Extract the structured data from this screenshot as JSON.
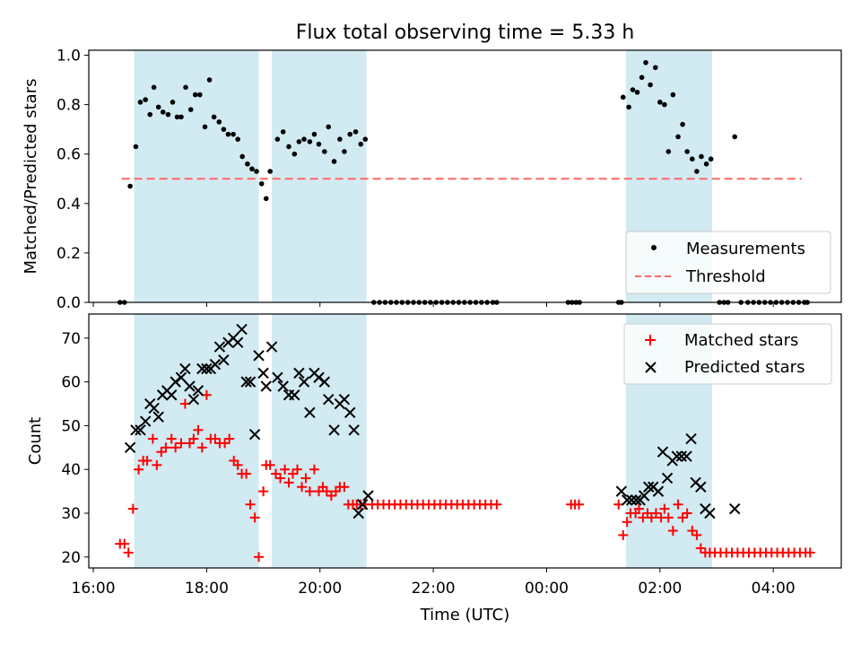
{
  "colors": {
    "band": "#add8e6",
    "measurement": "#000000",
    "threshold": "#ff6666",
    "matched": "#ff0000",
    "predicted": "#000000"
  },
  "chart_data": [
    {
      "type": "scatter",
      "title": "Flux total observing time = 5.33 h",
      "xlabel": "",
      "ylabel": "Matched/Predicted stars",
      "xlim": [
        15.92,
        29.2
      ],
      "ylim": [
        0,
        1.02
      ],
      "yticks": [
        0.0,
        0.2,
        0.4,
        0.6,
        0.8,
        1.0
      ],
      "ytick_labels": [
        "0.0",
        "0.2",
        "0.4",
        "0.6",
        "0.8",
        "1.0"
      ],
      "legend": {
        "placement": "lower-right",
        "entries": [
          "Measurements",
          "Threshold"
        ]
      },
      "shaded_intervals": [
        [
          16.72,
          18.92
        ],
        [
          19.15,
          20.82
        ],
        [
          25.4,
          26.92
        ]
      ],
      "threshold": {
        "name": "Threshold",
        "value": 0.5,
        "x_range": [
          16.5,
          28.5
        ]
      },
      "series": [
        {
          "name": "Measurements",
          "x": [
            16.47,
            16.55,
            16.65,
            16.75,
            16.83,
            16.92,
            17.0,
            17.07,
            17.15,
            17.23,
            17.32,
            17.4,
            17.48,
            17.55,
            17.63,
            17.72,
            17.8,
            17.88,
            17.97,
            18.05,
            18.13,
            18.22,
            18.3,
            18.38,
            18.47,
            18.55,
            18.63,
            18.72,
            18.8,
            18.88,
            18.97,
            19.05,
            19.12,
            19.25,
            19.35,
            19.45,
            19.55,
            19.63,
            19.72,
            19.82,
            19.9,
            19.98,
            20.08,
            20.15,
            20.25,
            20.35,
            20.43,
            20.53,
            20.63,
            20.72,
            20.8,
            20.95,
            21.05,
            21.15,
            21.25,
            21.35,
            21.45,
            21.55,
            21.65,
            21.75,
            21.85,
            21.95,
            22.05,
            22.15,
            22.25,
            22.35,
            22.45,
            22.55,
            22.65,
            22.75,
            22.85,
            22.95,
            23.05,
            23.12,
            24.38,
            24.45,
            24.52,
            24.58,
            25.27,
            25.32,
            25.35,
            25.45,
            25.52,
            25.6,
            25.68,
            25.75,
            25.83,
            25.92,
            26.0,
            26.08,
            26.15,
            26.23,
            26.32,
            26.4,
            26.48,
            26.57,
            26.65,
            26.73,
            26.82,
            26.9,
            27.05,
            27.13,
            27.2,
            27.32,
            27.43,
            27.55,
            27.65,
            27.75,
            27.85,
            27.95,
            28.05,
            28.15,
            28.25,
            28.35,
            28.45,
            28.55,
            28.6
          ],
          "y": [
            0.0,
            0.0,
            0.47,
            0.63,
            0.81,
            0.82,
            0.76,
            0.87,
            0.79,
            0.77,
            0.76,
            0.81,
            0.75,
            0.75,
            0.87,
            0.78,
            0.84,
            0.84,
            0.71,
            0.9,
            0.75,
            0.73,
            0.7,
            0.68,
            0.68,
            0.66,
            0.59,
            0.56,
            0.54,
            0.53,
            0.48,
            0.42,
            0.53,
            0.66,
            0.69,
            0.63,
            0.6,
            0.65,
            0.66,
            0.65,
            0.68,
            0.64,
            0.61,
            0.71,
            0.57,
            0.66,
            0.61,
            0.68,
            0.69,
            0.64,
            0.66,
            0.0,
            0.0,
            0.0,
            0.0,
            0.0,
            0.0,
            0.0,
            0.0,
            0.0,
            0.0,
            0.0,
            0.0,
            0.0,
            0.0,
            0.0,
            0.0,
            0.0,
            0.0,
            0.0,
            0.0,
            0.0,
            0.0,
            0.0,
            0.0,
            0.0,
            0.0,
            0.0,
            0.0,
            0.0,
            0.83,
            0.79,
            0.86,
            0.85,
            0.91,
            0.97,
            0.88,
            0.95,
            0.81,
            0.8,
            0.61,
            0.84,
            0.67,
            0.72,
            0.61,
            0.58,
            0.53,
            0.59,
            0.56,
            0.58,
            0.0,
            0.0,
            0.0,
            0.67,
            0.0,
            0.0,
            0.0,
            0.0,
            0.0,
            0.0,
            0.0,
            0.0,
            0.0,
            0.0,
            0.0,
            0.0,
            0.0
          ]
        }
      ]
    },
    {
      "type": "scatter",
      "title": "",
      "xlabel": "Time (UTC)",
      "ylabel": "Count",
      "xlim": [
        15.92,
        29.2
      ],
      "ylim": [
        17.5,
        75.5
      ],
      "xticks": [
        16,
        18,
        20,
        22,
        24,
        26,
        28
      ],
      "xtick_labels": [
        "16:00",
        "18:00",
        "20:00",
        "22:00",
        "00:00",
        "02:00",
        "04:00"
      ],
      "yticks": [
        20,
        30,
        40,
        50,
        60,
        70
      ],
      "ytick_labels": [
        "20",
        "30",
        "40",
        "50",
        "60",
        "70"
      ],
      "legend": {
        "placement": "upper-right",
        "entries": [
          "Matched stars",
          "Predicted stars"
        ]
      },
      "shaded_intervals": [
        [
          16.72,
          18.92
        ],
        [
          19.15,
          20.82
        ],
        [
          25.4,
          26.92
        ]
      ],
      "series": [
        {
          "name": "Matched stars",
          "marker": "+",
          "x": [
            16.47,
            16.55,
            16.62,
            16.7,
            16.8,
            16.88,
            16.95,
            17.05,
            17.12,
            17.2,
            17.28,
            17.38,
            17.45,
            17.55,
            17.62,
            17.7,
            17.77,
            17.85,
            17.92,
            18.0,
            18.07,
            18.15,
            18.23,
            18.32,
            18.4,
            18.48,
            18.55,
            18.62,
            18.7,
            18.77,
            18.85,
            18.92,
            19.0,
            19.05,
            19.12,
            19.22,
            19.3,
            19.38,
            19.45,
            19.52,
            19.6,
            19.68,
            19.75,
            19.82,
            19.9,
            19.98,
            20.05,
            20.12,
            20.2,
            20.28,
            20.35,
            20.43,
            20.5,
            20.58,
            20.65,
            20.72,
            20.8,
            20.92,
            21.02,
            21.12,
            21.22,
            21.32,
            21.42,
            21.52,
            21.62,
            21.72,
            21.82,
            21.92,
            22.02,
            22.12,
            22.22,
            22.32,
            22.42,
            22.52,
            22.62,
            22.72,
            22.82,
            22.92,
            23.02,
            23.12,
            24.43,
            24.5,
            24.57,
            25.27,
            25.35,
            25.42,
            25.48,
            25.57,
            25.63,
            25.7,
            25.78,
            25.85,
            25.93,
            26.02,
            26.08,
            26.15,
            26.23,
            26.32,
            26.4,
            26.48,
            26.57,
            26.65,
            26.72,
            26.8,
            26.88,
            26.97,
            27.07,
            27.17,
            27.27,
            27.37,
            27.47,
            27.57,
            27.67,
            27.77,
            27.87,
            27.97,
            28.07,
            28.17,
            28.27,
            28.37,
            28.47,
            28.57,
            28.65
          ],
          "y": [
            23,
            23,
            21,
            31,
            40,
            42,
            42,
            47,
            41,
            44,
            45,
            47,
            45,
            46,
            55,
            46,
            47,
            49,
            45,
            57,
            47,
            47,
            46,
            46,
            47,
            42,
            41,
            39,
            39,
            32,
            29,
            20,
            35,
            41,
            41,
            39,
            38,
            40,
            37,
            39,
            40,
            36,
            38,
            35,
            40,
            35,
            36,
            35,
            34,
            35,
            36,
            36,
            32,
            32,
            32,
            32,
            32,
            32,
            32,
            32,
            32,
            32,
            32,
            32,
            32,
            32,
            32,
            32,
            32,
            32,
            32,
            32,
            32,
            32,
            32,
            32,
            32,
            32,
            32,
            32,
            32,
            32,
            32,
            32,
            25,
            28,
            30,
            30,
            31,
            29,
            30,
            29,
            30,
            29,
            31,
            29,
            26,
            32,
            29,
            30,
            26,
            25,
            22,
            21,
            21,
            21,
            21,
            21,
            21,
            21,
            21,
            21,
            21,
            21,
            21,
            21,
            21,
            21,
            21,
            21,
            21,
            21,
            21
          ]
        },
        {
          "name": "Predicted stars",
          "marker": "x",
          "x": [
            16.65,
            16.75,
            16.83,
            16.92,
            17.0,
            17.07,
            17.15,
            17.22,
            17.3,
            17.38,
            17.45,
            17.55,
            17.62,
            17.7,
            17.77,
            17.85,
            17.92,
            18.0,
            18.07,
            18.15,
            18.23,
            18.3,
            18.38,
            18.47,
            18.55,
            18.62,
            18.7,
            18.77,
            18.85,
            18.92,
            19.0,
            19.05,
            19.15,
            19.25,
            19.35,
            19.45,
            19.55,
            19.63,
            19.72,
            19.82,
            19.9,
            19.98,
            20.08,
            20.15,
            20.25,
            20.35,
            20.43,
            20.53,
            20.6,
            20.68,
            20.75,
            20.85,
            25.32,
            25.42,
            25.5,
            25.58,
            25.65,
            25.72,
            25.8,
            25.88,
            25.97,
            26.05,
            26.13,
            26.22,
            26.3,
            26.38,
            26.47,
            26.55,
            26.63,
            26.72,
            26.8,
            26.88,
            27.32
          ],
          "y": [
            45,
            49,
            49,
            51,
            55,
            54,
            52,
            57,
            58,
            57,
            60,
            61,
            63,
            59,
            56,
            58,
            63,
            63,
            63,
            64,
            68,
            65,
            69,
            70,
            69,
            72,
            60,
            60,
            48,
            66,
            62,
            59,
            68,
            61,
            59,
            57,
            57,
            62,
            60,
            53,
            62,
            61,
            60,
            56,
            49,
            55,
            56,
            53,
            49,
            30,
            32,
            34,
            35,
            33,
            33,
            33,
            33,
            34,
            36,
            36,
            35,
            44,
            38,
            42,
            43,
            43,
            43,
            47,
            37,
            36,
            31,
            30,
            31
          ]
        }
      ]
    }
  ]
}
